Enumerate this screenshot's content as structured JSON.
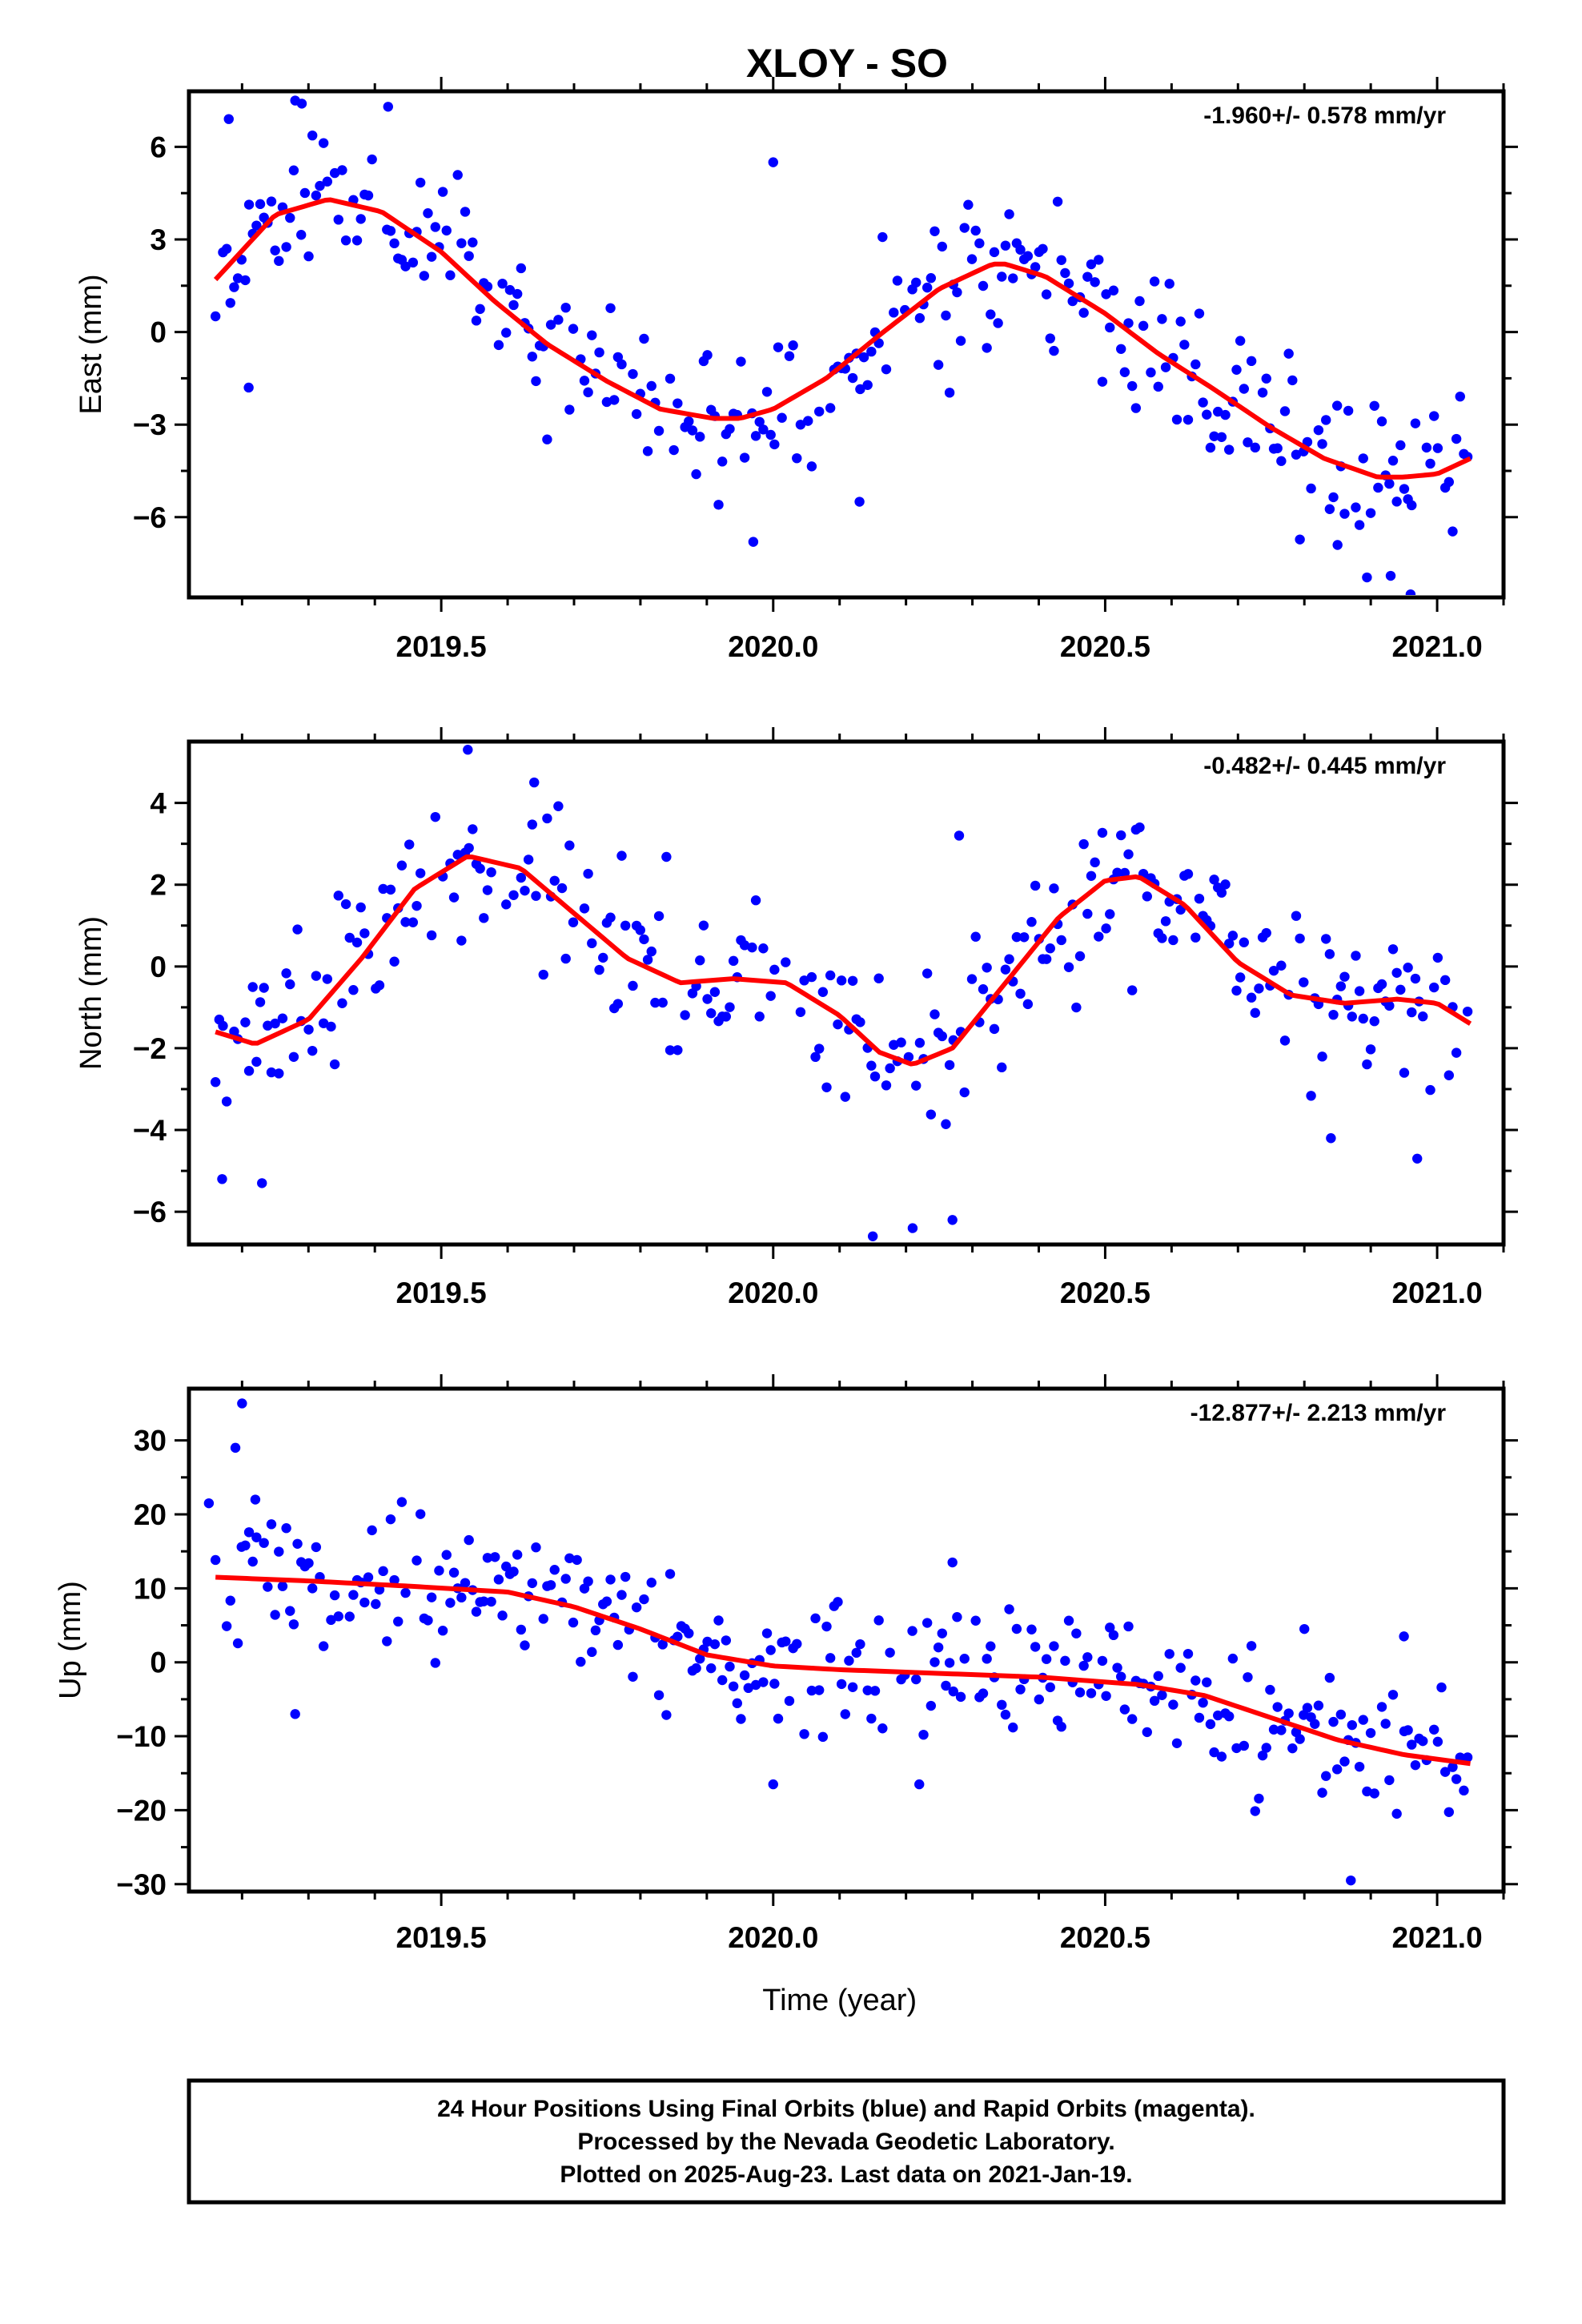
{
  "title": "XLOY - SO",
  "footer": {
    "lines": [
      "24 Hour Positions Using Final Orbits (blue) and Rapid Orbits (magenta).",
      "Processed by the Nevada Geodetic Laboratory.",
      "Plotted on 2025-Aug-23. Last data on 2021-Jan-19."
    ]
  },
  "colors": {
    "points": "#0000ff",
    "model": "#ff0000",
    "frame": "#000000"
  },
  "chart_data": [
    {
      "type": "scatter",
      "ylabel": "East (mm)",
      "xlabel": "",
      "rate_label": "-1.960+/- 0.578 mm/yr",
      "xlim": [
        2019.12,
        2021.1
      ],
      "ylim": [
        -8.6,
        7.8
      ],
      "xticks": [
        2019.5,
        2020.0,
        2020.5,
        2021.0
      ],
      "xtick_labels": [
        "2019.5",
        "2020.0",
        "2020.5",
        "2021.0"
      ],
      "yticks": [
        6,
        3,
        0,
        -3,
        -6
      ],
      "ytick_labels": [
        "6",
        "3",
        "0",
        "−3",
        "−6"
      ],
      "grid": false,
      "model_x": [
        2019.16,
        2019.25,
        2019.33,
        2019.41,
        2019.5,
        2019.58,
        2019.66,
        2019.75,
        2019.83,
        2019.91,
        2019.95,
        2020.0,
        2020.08,
        2020.16,
        2020.25,
        2020.33,
        2020.35,
        2020.41,
        2020.5,
        2020.58,
        2020.66,
        2020.75,
        2020.83,
        2020.91,
        2020.95,
        2021.0,
        2021.05
      ],
      "model_y": [
        1.7,
        3.8,
        4.3,
        3.9,
        2.6,
        1.0,
        -0.4,
        -1.6,
        -2.5,
        -2.8,
        -2.8,
        -2.5,
        -1.5,
        -0.1,
        1.4,
        2.2,
        2.2,
        1.8,
        0.6,
        -0.7,
        -1.8,
        -3.1,
        -4.1,
        -4.7,
        -4.7,
        -4.6,
        -4.1
      ],
      "points": [
        {
          "x": [
            2019.16,
            2019.2,
            2019.25,
            2019.3,
            2019.35,
            2019.4,
            2019.45,
            2019.5,
            2019.55,
            2019.6,
            2019.65,
            2019.7,
            2019.75,
            2019.8,
            2019.85,
            2019.9,
            2019.95,
            2020.0,
            2020.05,
            2020.1,
            2020.15,
            2020.2,
            2020.25,
            2020.3,
            2020.35,
            2020.4,
            2020.45,
            2020.5,
            2020.55,
            2020.6,
            2020.65,
            2020.7,
            2020.75,
            2020.8,
            2020.85,
            2020.9,
            2020.95,
            2021.0,
            2021.04
          ]
        },
        {
          "y": [
            1.7,
            3.2,
            4.0,
            4.3,
            4.2,
            3.6,
            3.0,
            2.3,
            1.5,
            0.7,
            -0.1,
            -0.8,
            -1.5,
            -2.0,
            -2.5,
            -2.8,
            -2.8,
            -2.6,
            -2.0,
            -1.2,
            -0.4,
            0.5,
            1.4,
            2.0,
            2.3,
            2.0,
            1.3,
            0.6,
            -0.1,
            -0.9,
            -1.6,
            -2.4,
            -3.2,
            -3.8,
            -4.3,
            -4.7,
            -4.8,
            -4.6,
            -4.1
          ]
        },
        {
          "spread": 1.3,
          "outliers": [
            [
              2019.18,
              6.9
            ],
            [
              2019.28,
              7.5
            ],
            [
              2019.42,
              7.4
            ],
            [
              2019.21,
              -1.8
            ],
            [
              2020.0,
              5.5
            ],
            [
              2020.13,
              -5.5
            ],
            [
              2019.97,
              -6.8
            ],
            [
              2020.96,
              -8.5
            ],
            [
              2020.93,
              -7.9
            ]
          ]
        }
      ]
    },
    {
      "type": "scatter",
      "ylabel": "North (mm)",
      "xlabel": "",
      "rate_label": "-0.482+/- 0.445 mm/yr",
      "xlim": [
        2019.12,
        2021.1
      ],
      "ylim": [
        -6.8,
        5.5
      ],
      "xticks": [
        2019.5,
        2020.0,
        2020.5,
        2021.0
      ],
      "xtick_labels": [
        "2019.5",
        "2020.0",
        "2020.5",
        "2021.0"
      ],
      "yticks": [
        4,
        2,
        0,
        -2,
        -4,
        -6
      ],
      "ytick_labels": [
        "4",
        "2",
        "0",
        "−2",
        "−4",
        "−6"
      ],
      "grid": false,
      "model_x": [
        2019.16,
        2019.22,
        2019.3,
        2019.38,
        2019.46,
        2019.54,
        2019.62,
        2019.7,
        2019.78,
        2019.86,
        2019.94,
        2020.02,
        2020.1,
        2020.16,
        2020.21,
        2020.27,
        2020.35,
        2020.43,
        2020.5,
        2020.55,
        2020.62,
        2020.7,
        2020.78,
        2020.86,
        2020.94,
        2021.0,
        2021.05
      ],
      "model_y": [
        -1.6,
        -1.9,
        -1.3,
        0.2,
        1.9,
        2.7,
        2.4,
        1.3,
        0.2,
        -0.4,
        -0.3,
        -0.4,
        -1.2,
        -2.1,
        -2.4,
        -2.0,
        -0.4,
        1.2,
        2.1,
        2.2,
        1.5,
        0.1,
        -0.7,
        -0.9,
        -0.8,
        -0.9,
        -1.4
      ]
    },
    {
      "type": "scatter",
      "ylabel": "Up (mm)",
      "xlabel": "Time (year)",
      "rate_label": "-12.877+/- 2.213 mm/yr",
      "xlim": [
        2019.12,
        2021.1
      ],
      "ylim": [
        -31,
        37
      ],
      "xticks": [
        2019.5,
        2020.0,
        2020.5,
        2021.0
      ],
      "xtick_labels": [
        "2019.5",
        "2020.0",
        "2020.5",
        "2021.0"
      ],
      "yticks": [
        30,
        20,
        10,
        0,
        -10,
        -20,
        -30
      ],
      "ytick_labels": [
        "30",
        "20",
        "10",
        "0",
        "−10",
        "−20",
        "−30"
      ],
      "grid": false,
      "model_x": [
        2019.16,
        2019.3,
        2019.45,
        2019.6,
        2019.7,
        2019.8,
        2019.9,
        2020.0,
        2020.1,
        2020.25,
        2020.4,
        2020.55,
        2020.65,
        2020.75,
        2020.85,
        2020.95,
        2021.05
      ],
      "model_y": [
        11.5,
        11.0,
        10.3,
        9.5,
        7.5,
        4.5,
        1.0,
        -0.5,
        -1.0,
        -1.5,
        -2.0,
        -3.0,
        -4.5,
        -7.5,
        -10.5,
        -12.5,
        -13.7
      ]
    }
  ]
}
